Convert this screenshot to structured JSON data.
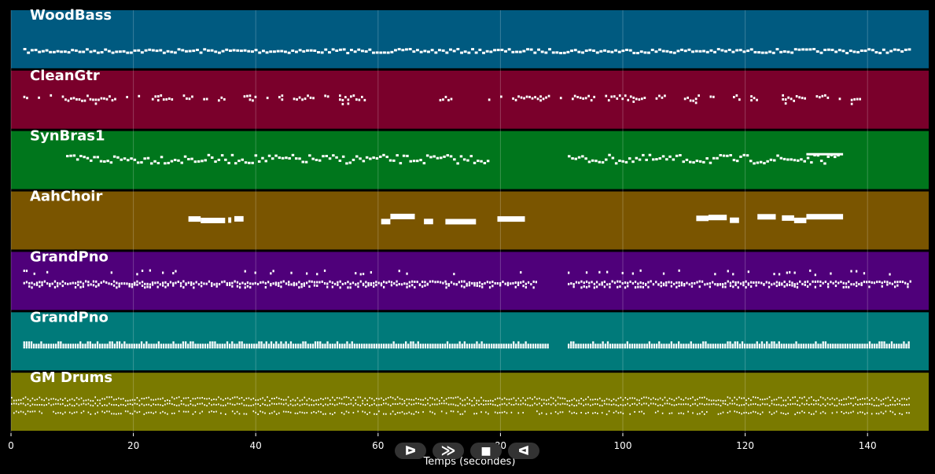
{
  "chart_data": {
    "type": "piano-roll",
    "xlabel": "Temps (secondes)",
    "xlim": [
      0,
      150
    ],
    "xticks": [
      0,
      20,
      40,
      60,
      80,
      100,
      120,
      140
    ],
    "grid": true,
    "tracks": [
      {
        "name": "WoodBass",
        "color": "#005a80",
        "pattern": "bass",
        "segments": [
          [
            2,
            147
          ]
        ]
      },
      {
        "name": "CleanGtr",
        "color": "#7a002b",
        "pattern": "sparse",
        "segments": [
          [
            2,
            22
          ],
          [
            23,
            35
          ],
          [
            38,
            58
          ],
          [
            70,
            72
          ],
          [
            78,
            92
          ],
          [
            92,
            107
          ],
          [
            110,
            115
          ],
          [
            118,
            122
          ],
          [
            126,
            140
          ]
        ]
      },
      {
        "name": "SynBras1",
        "color": "#00761c",
        "pattern": "melody",
        "segments": [
          [
            9,
            78
          ],
          [
            91,
            135
          ]
        ],
        "long_notes": [
          [
            130,
            136
          ]
        ]
      },
      {
        "name": "AahChoir",
        "color": "#7a5500",
        "pattern": "blocks",
        "blocks": [
          [
            29,
            31
          ],
          [
            31,
            35
          ],
          [
            35.5,
            36
          ],
          [
            36.5,
            38
          ],
          [
            60.5,
            62
          ],
          [
            62,
            66
          ],
          [
            67.5,
            69
          ],
          [
            71,
            76
          ],
          [
            79.5,
            84
          ],
          [
            112,
            114
          ],
          [
            114,
            117
          ],
          [
            117.5,
            119
          ],
          [
            122,
            125
          ],
          [
            126,
            128
          ],
          [
            128,
            130
          ],
          [
            130,
            136
          ]
        ]
      },
      {
        "name": "GrandPno",
        "color": "#4f007a",
        "pattern": "dense",
        "segments": [
          [
            2,
            71
          ],
          [
            71,
            86
          ],
          [
            91,
            147
          ]
        ]
      },
      {
        "name": "GrandPno",
        "color": "#007a7a",
        "pattern": "chords",
        "segments": [
          [
            2,
            88
          ],
          [
            91,
            147
          ]
        ]
      },
      {
        "name": "GM Drums",
        "color": "#7a7a00",
        "pattern": "drums",
        "segments": [
          [
            0,
            147
          ]
        ]
      }
    ]
  },
  "controls": [
    {
      "name": "play-button",
      "glyph": "ᐅ"
    },
    {
      "name": "fast-forward-button",
      "glyph": "≫"
    },
    {
      "name": "stop-button",
      "glyph": "■"
    },
    {
      "name": "rewind-button",
      "glyph": "ᐊ"
    }
  ]
}
